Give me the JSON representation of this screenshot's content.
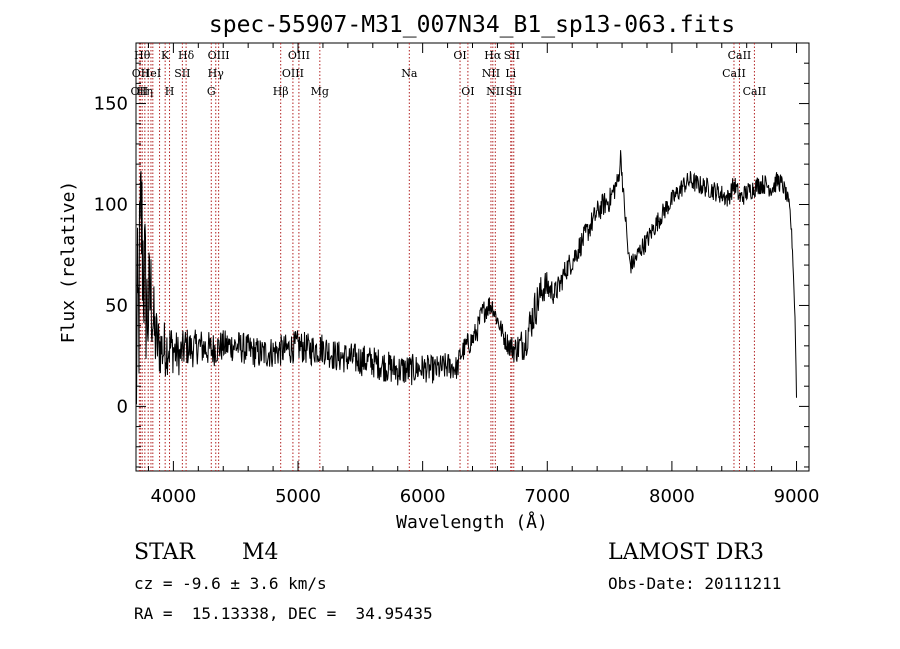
{
  "chart_data": {
    "type": "line",
    "title": "spec-55907-M31_007N34_B1_sp13-063.fits",
    "xlabel": "Wavelength (Å)",
    "ylabel": "Flux (relative)",
    "xlim": [
      3700,
      9100
    ],
    "ylim": [
      -32,
      180
    ],
    "x_ticks": [
      4000,
      5000,
      6000,
      7000,
      8000,
      9000
    ],
    "y_ticks": [
      0,
      50,
      100,
      150
    ],
    "series": [
      {
        "name": "flux",
        "anchors_x": [
          3700,
          3720,
          3740,
          3760,
          3790,
          3820,
          3850,
          3880,
          3920,
          3960,
          4000,
          4050,
          4100,
          4150,
          4200,
          4300,
          4400,
          4500,
          4600,
          4700,
          4800,
          4900,
          5000,
          5100,
          5200,
          5300,
          5400,
          5500,
          5600,
          5700,
          5800,
          5900,
          6000,
          6100,
          6200,
          6280,
          6300,
          6350,
          6400,
          6440,
          6470,
          6500,
          6530,
          6560,
          6580,
          6620,
          6660,
          6700,
          6740,
          6780,
          6820,
          6860,
          6900,
          6940,
          6980,
          7020,
          7060,
          7100,
          7150,
          7200,
          7250,
          7300,
          7350,
          7400,
          7450,
          7500,
          7540,
          7570,
          7590,
          7610,
          7630,
          7650,
          7670,
          7700,
          7750,
          7800,
          7850,
          7900,
          7950,
          8000,
          8050,
          8100,
          8150,
          8200,
          8300,
          8400,
          8450,
          8500,
          8550,
          8600,
          8650,
          8700,
          8750,
          8800,
          8850,
          8880,
          8900,
          8930,
          8950,
          8970,
          8990,
          9000
        ],
        "anchors_y": [
          20,
          40,
          95,
          70,
          45,
          55,
          35,
          30,
          28,
          30,
          28,
          25,
          30,
          28,
          30,
          28,
          30,
          30,
          28,
          26,
          27,
          28,
          30,
          28,
          29,
          25,
          24,
          23,
          22,
          20,
          18,
          18,
          19,
          18,
          20,
          19,
          25,
          30,
          33,
          38,
          45,
          48,
          50,
          50,
          46,
          40,
          33,
          30,
          28,
          30,
          32,
          40,
          48,
          55,
          60,
          58,
          56,
          60,
          68,
          72,
          78,
          84,
          90,
          96,
          100,
          102,
          108,
          112,
          125,
          105,
          92,
          75,
          70,
          72,
          78,
          82,
          88,
          93,
          98,
          102,
          106,
          110,
          112,
          110,
          108,
          105,
          103,
          110,
          103,
          106,
          108,
          110,
          110,
          108,
          112,
          110,
          108,
          102,
          95,
          75,
          40,
          5
        ],
        "noise": [
          60,
          55,
          45,
          45,
          35,
          28,
          20,
          16,
          15,
          14,
          12,
          10,
          10,
          9,
          9,
          9,
          8,
          8,
          8,
          8,
          8,
          8,
          8,
          8,
          8,
          8,
          8,
          8,
          8,
          8,
          8,
          8,
          7,
          7,
          7,
          6,
          6,
          6,
          6,
          6,
          6,
          6,
          6,
          5,
          5,
          5,
          5,
          6,
          7,
          8,
          9,
          10,
          10,
          9,
          8,
          7,
          6,
          6,
          6,
          6,
          6,
          6,
          6,
          6,
          6,
          6,
          6,
          5,
          5,
          5,
          5,
          5,
          5,
          5,
          5,
          5,
          5,
          5,
          5,
          5,
          5,
          5,
          5,
          5,
          5,
          5,
          5,
          5,
          5,
          5,
          5,
          5,
          5,
          5,
          5,
          5,
          4,
          4,
          4,
          3,
          2,
          2
        ]
      }
    ],
    "lines": [
      {
        "wl": 3727,
        "label": "OII",
        "row": 2
      },
      {
        "wl": 3737,
        "label": "OII",
        "row": 1
      },
      {
        "wl": 3750,
        "label": "Hθ",
        "row": 0
      },
      {
        "wl": 3771,
        "label": "Hη",
        "row": 2
      },
      {
        "wl": 3798,
        "label": "",
        "row": 0
      },
      {
        "wl": 3820,
        "label": "HeI",
        "row": 1
      },
      {
        "wl": 3835,
        "label": "",
        "row": 0
      },
      {
        "wl": 3889,
        "label": "",
        "row": 0
      },
      {
        "wl": 3934,
        "label": "K",
        "row": 0
      },
      {
        "wl": 3969,
        "label": "H",
        "row": 2
      },
      {
        "wl": 4072,
        "label": "SII",
        "row": 1
      },
      {
        "wl": 4102,
        "label": "Hδ",
        "row": 0
      },
      {
        "wl": 4304,
        "label": "G",
        "row": 2
      },
      {
        "wl": 4340,
        "label": "Hγ",
        "row": 1
      },
      {
        "wl": 4363,
        "label": "OIII",
        "row": 0
      },
      {
        "wl": 4861,
        "label": "Hβ",
        "row": 2
      },
      {
        "wl": 4959,
        "label": "OIII",
        "row": 1
      },
      {
        "wl": 5007,
        "label": "OIII",
        "row": 0
      },
      {
        "wl": 5175,
        "label": "Mg",
        "row": 2
      },
      {
        "wl": 5893,
        "label": "Na",
        "row": 1
      },
      {
        "wl": 6300,
        "label": "OI",
        "row": 0
      },
      {
        "wl": 6363,
        "label": "OI",
        "row": 2
      },
      {
        "wl": 6548,
        "label": "NII",
        "row": 1
      },
      {
        "wl": 6563,
        "label": "Hα",
        "row": 0
      },
      {
        "wl": 6583,
        "label": "NII",
        "row": 2
      },
      {
        "wl": 6707,
        "label": "Li",
        "row": 1
      },
      {
        "wl": 6716,
        "label": "SII",
        "row": 0
      },
      {
        "wl": 6731,
        "label": "SII",
        "row": 2
      },
      {
        "wl": 8498,
        "label": "CaII",
        "row": 1
      },
      {
        "wl": 8542,
        "label": "CaII",
        "row": 0
      },
      {
        "wl": 8662,
        "label": "CaII",
        "row": 2
      }
    ]
  },
  "info": {
    "object_class": "STAR",
    "subclass": "M4",
    "survey": "LAMOST DR3",
    "cz": "cz = -9.6 ± 3.6 km/s",
    "obs_date": "Obs-Date: 20111211",
    "coords": "RA =  15.13338, DEC =  34.95435"
  },
  "colors": {
    "line_marker": "#b22222",
    "spectrum": "#000000"
  }
}
